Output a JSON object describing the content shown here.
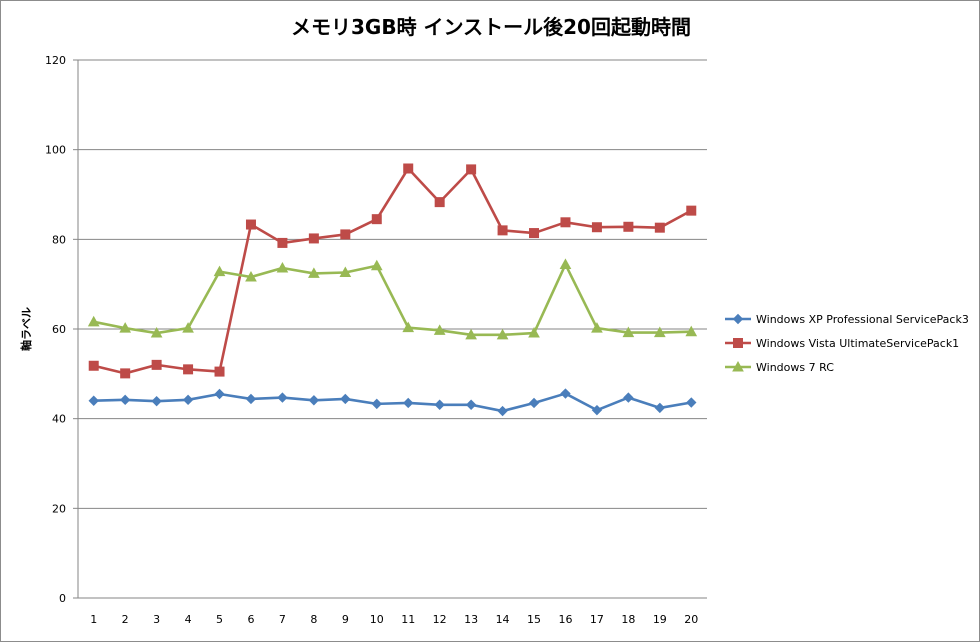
{
  "chart_data": {
    "type": "line",
    "title": "メモリ3GB時 インストール後20回起動時間",
    "xlabel": "",
    "ylabel": "軸ラベル",
    "ylim": [
      0,
      120
    ],
    "yticks": [
      0,
      20,
      40,
      60,
      80,
      100,
      120
    ],
    "grid": true,
    "legend_position": "right",
    "categories": [
      "1",
      "2",
      "3",
      "4",
      "5",
      "6",
      "7",
      "8",
      "9",
      "10",
      "11",
      "12",
      "13",
      "14",
      "15",
      "16",
      "17",
      "18",
      "19",
      "20"
    ],
    "series": [
      {
        "name": "Windows XP Professional ServicePack3",
        "color": "#4a7ebb",
        "marker": "diamond",
        "values": [
          44.0,
          44.2,
          43.9,
          44.2,
          45.5,
          44.4,
          44.7,
          44.1,
          44.4,
          43.3,
          43.5,
          43.1,
          43.1,
          41.7,
          43.5,
          45.6,
          41.9,
          44.7,
          42.4,
          43.6
        ]
      },
      {
        "name": "Windows Vista UltimateServicePack1",
        "color": "#be4b48",
        "marker": "square",
        "values": [
          51.8,
          50.1,
          52.0,
          51.0,
          50.5,
          83.3,
          79.2,
          80.2,
          81.1,
          84.5,
          95.8,
          88.3,
          95.6,
          82.0,
          81.4,
          83.8,
          82.7,
          82.8,
          82.6,
          86.4
        ]
      },
      {
        "name": "Windows 7 RC",
        "color": "#98b954",
        "marker": "triangle",
        "values": [
          61.6,
          60.2,
          59.1,
          60.2,
          72.8,
          71.6,
          73.6,
          72.4,
          72.6,
          74.1,
          60.3,
          59.7,
          58.7,
          58.7,
          59.1,
          74.4,
          60.2,
          59.2,
          59.2,
          59.4
        ]
      }
    ]
  }
}
